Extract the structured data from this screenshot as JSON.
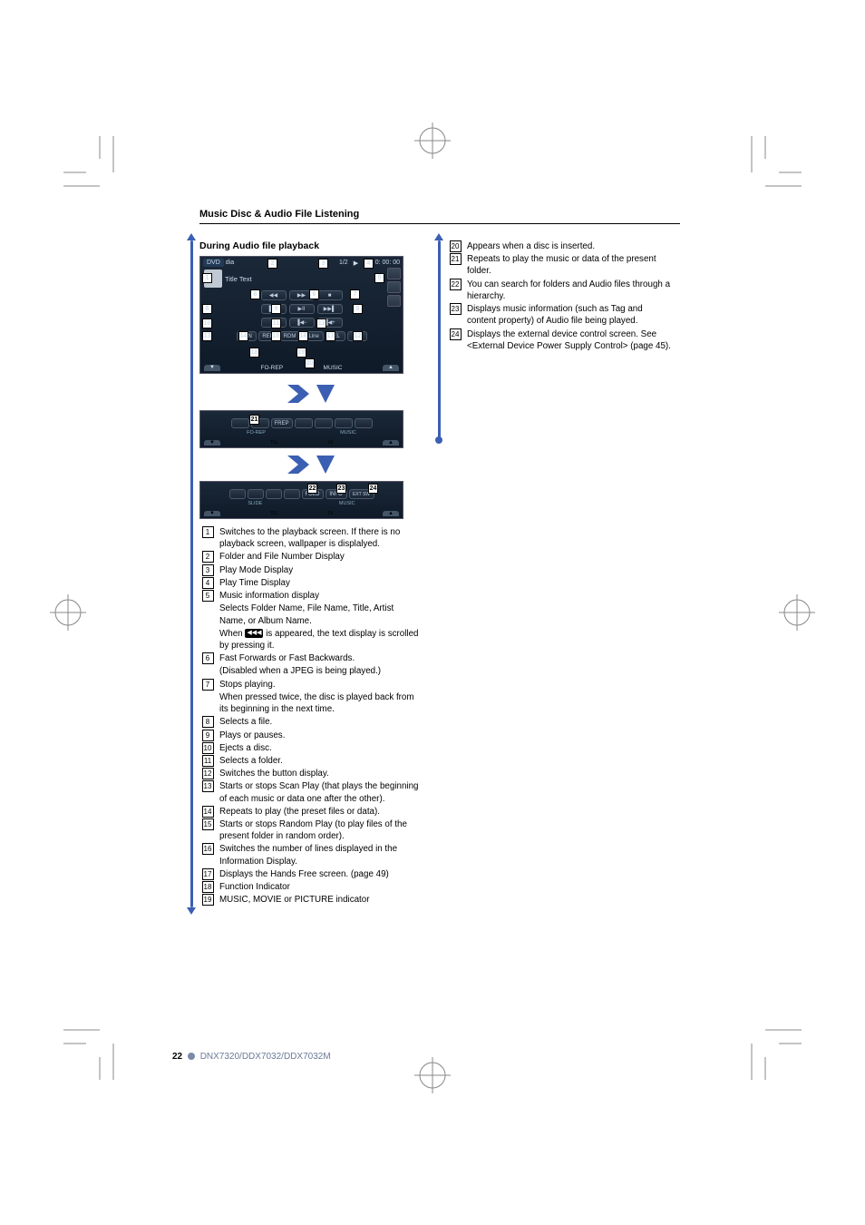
{
  "header": {
    "section_title": "Music Disc & Audio File Listening"
  },
  "left_column": {
    "subheading": "During Audio file playback",
    "player": {
      "source": "DVD",
      "media_label": "dia",
      "track_number": "1/2",
      "play_icon": "▶",
      "mode": "P",
      "time": "0: 00: 00",
      "title_text": "Title Text",
      "line_label": "3Line",
      "buttons_row1": [
        "◀◀",
        "▶▶",
        "■"
      ],
      "buttons_row2": [
        "▐◀◀",
        "▶II",
        "▶▶▌"
      ],
      "buttons_row3": [
        "▲",
        "▐◀−",
        "▐◀+"
      ],
      "buttons_row4": [
        "SCN",
        "REP",
        "RDM",
        "3Line",
        "TEL",
        ""
      ],
      "fo_rep": "FO-REP",
      "music_label": "MUSIC",
      "tab_left": "▼",
      "tab_tel": "TEL",
      "tab_right": "▲",
      "in_label": "IN"
    },
    "strip1": {
      "btns": [
        "",
        "",
        "FREP",
        "",
        "",
        "",
        ""
      ],
      "label1": "FO-REP",
      "label2": "MUSIC",
      "label3": "IN",
      "tel": "TEL"
    },
    "strip2": {
      "btns": [
        "",
        "",
        "",
        "",
        "FOLD",
        "INFO",
        "EXT SW"
      ],
      "label1": "SLIDE",
      "label2": "MUSIC",
      "label3": "IN",
      "tel": "TEL"
    },
    "callout_21": "21",
    "callout_22": "22",
    "callout_23": "23",
    "callout_24": "24",
    "items": [
      {
        "num": "1",
        "text": "Switches to the playback screen. If there is no playback screen, wallpaper is displalyed."
      },
      {
        "num": "2",
        "text": "Folder and File Number Display"
      },
      {
        "num": "3",
        "text": "Play Mode Display"
      },
      {
        "num": "4",
        "text": "Play Time Display"
      },
      {
        "num": "5",
        "text": "Music information display"
      },
      {
        "num": "",
        "text": "Selects Folder Name, File Name, Title, Artist Name, or Album Name."
      },
      {
        "num": "",
        "text": "When ___ is appeared, the text display is scrolled by pressing it.",
        "has_scroll_icon": true
      },
      {
        "num": "6",
        "text": "Fast Forwards or Fast Backwards."
      },
      {
        "num": "",
        "text": "(Disabled when a JPEG is being played.)"
      },
      {
        "num": "7",
        "text": "Stops playing."
      },
      {
        "num": "",
        "text": "When pressed twice, the disc is played back from its beginning in the next time."
      },
      {
        "num": "8",
        "text": "Selects a file."
      },
      {
        "num": "9",
        "text": "Plays or pauses."
      },
      {
        "num": "10",
        "text": "Ejects a disc."
      },
      {
        "num": "11",
        "text": "Selects a folder."
      },
      {
        "num": "12",
        "text": "Switches the button display."
      },
      {
        "num": "13",
        "text": "Starts or stops Scan Play (that plays the beginning of each music or data one after the other)."
      },
      {
        "num": "14",
        "text": "Repeats to play (the preset files or data)."
      },
      {
        "num": "15",
        "text": "Starts or stops Random Play (to play files of the present folder in random order)."
      },
      {
        "num": "16",
        "text": "Switches the number of lines displayed in the Information Display."
      },
      {
        "num": "17",
        "text": "Displays the Hands Free screen. (page 49)"
      },
      {
        "num": "18",
        "text": "Function Indicator"
      },
      {
        "num": "19",
        "text": "MUSIC, MOVIE or PICTURE indicator"
      }
    ]
  },
  "right_column": {
    "items": [
      {
        "num": "20",
        "text": "Appears when a disc is inserted."
      },
      {
        "num": "21",
        "text": "Repeats to play the music or data of the present folder."
      },
      {
        "num": "22",
        "text": "You can search for folders and Audio files through a hierarchy."
      },
      {
        "num": "23",
        "text": "Displays music information (such as Tag and content property) of Audio file being played."
      },
      {
        "num": "24",
        "text": "Displays the external device control screen. See <External Device Power Supply Control> (page 45)."
      }
    ]
  },
  "footer": {
    "page": "22",
    "model": "DNX7320/DDX7032/DDX7032M"
  },
  "colors": {
    "accent_blue": "#3b5fb2",
    "screen_bg_top": "#1a2838",
    "screen_bg_bot": "#0f1a28",
    "model_text": "#6a7a98"
  }
}
